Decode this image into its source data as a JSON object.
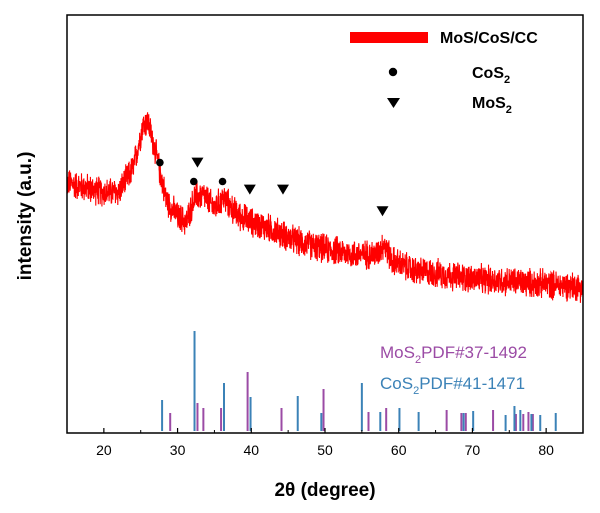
{
  "chart_data": {
    "type": "line",
    "xlabel": "2θ (degree)",
    "ylabel": "intensity (a.u.)",
    "xlim": [
      15,
      85
    ],
    "x_ticks": [
      20,
      30,
      40,
      50,
      60,
      70,
      80
    ],
    "y_ticks_shown": false,
    "grid": false,
    "legend_position": "top-right",
    "colors": {
      "pattern": "#ff0000",
      "mos2_pdf": "#9b4ba5",
      "cos2_pdf": "#3b82b7",
      "markers": "#000000"
    },
    "series": [
      {
        "name": "MoS/CoS/CC",
        "style": "noisy-line",
        "points": [
          [
            15,
            0.545
          ],
          [
            20,
            0.51
          ],
          [
            22,
            0.51
          ],
          [
            24,
            0.6
          ],
          [
            25.3,
            0.76
          ],
          [
            26,
            0.77
          ],
          [
            27,
            0.66
          ],
          [
            28.5,
            0.48
          ],
          [
            30,
            0.42
          ],
          [
            31.2,
            0.4
          ],
          [
            32.3,
            0.49
          ],
          [
            33.5,
            0.5
          ],
          [
            35,
            0.45
          ],
          [
            36.2,
            0.49
          ],
          [
            38,
            0.43
          ],
          [
            40,
            0.4
          ],
          [
            43,
            0.37
          ],
          [
            46,
            0.33
          ],
          [
            50,
            0.3
          ],
          [
            54,
            0.28
          ],
          [
            57,
            0.28
          ],
          [
            58,
            0.32
          ],
          [
            59,
            0.26
          ],
          [
            62,
            0.22
          ],
          [
            65,
            0.21
          ],
          [
            70,
            0.19
          ],
          [
            75,
            0.18
          ],
          [
            80,
            0.17
          ],
          [
            85,
            0.16
          ]
        ],
        "noise_amplitude": 0.045
      }
    ],
    "markers": [
      {
        "name": "CoS2",
        "symbol": "circle",
        "x": [
          27.6,
          32.2,
          36.1
        ],
        "y": [
          0.62,
          0.55,
          0.55
        ]
      },
      {
        "name": "MoS2",
        "symbol": "triangle-down",
        "x": [
          32.7,
          39.8,
          44.3,
          57.8
        ],
        "y": [
          0.62,
          0.52,
          0.52,
          0.44
        ]
      }
    ],
    "reference_patterns": [
      {
        "name": "MoS2 PDF#37-1492",
        "label_main": "MoS",
        "label_sub": "2",
        "label_rest": "PDF#37-1492",
        "lines": [
          {
            "x": 29.0,
            "i": 0.18
          },
          {
            "x": 32.7,
            "i": 0.28
          },
          {
            "x": 33.5,
            "i": 0.23
          },
          {
            "x": 35.9,
            "i": 0.23
          },
          {
            "x": 39.5,
            "i": 0.59
          },
          {
            "x": 44.1,
            "i": 0.23
          },
          {
            "x": 49.8,
            "i": 0.42
          },
          {
            "x": 55.9,
            "i": 0.19
          },
          {
            "x": 58.3,
            "i": 0.23
          },
          {
            "x": 66.5,
            "i": 0.21
          },
          {
            "x": 68.5,
            "i": 0.18
          },
          {
            "x": 69.1,
            "i": 0.18
          },
          {
            "x": 72.8,
            "i": 0.21
          },
          {
            "x": 75.9,
            "i": 0.17
          },
          {
            "x": 76.9,
            "i": 0.17
          },
          {
            "x": 77.6,
            "i": 0.19
          },
          {
            "x": 78.2,
            "i": 0.17
          }
        ]
      },
      {
        "name": "CoS2 PDF#41-1471",
        "label_main": "CoS",
        "label_sub": "2",
        "label_rest": "PDF#41-1471",
        "lines": [
          {
            "x": 27.9,
            "i": 0.31
          },
          {
            "x": 32.3,
            "i": 1.0
          },
          {
            "x": 36.3,
            "i": 0.48
          },
          {
            "x": 39.9,
            "i": 0.34
          },
          {
            "x": 46.3,
            "i": 0.35
          },
          {
            "x": 49.5,
            "i": 0.18
          },
          {
            "x": 55.0,
            "i": 0.48
          },
          {
            "x": 57.5,
            "i": 0.19
          },
          {
            "x": 60.1,
            "i": 0.23
          },
          {
            "x": 62.7,
            "i": 0.19
          },
          {
            "x": 68.8,
            "i": 0.18
          },
          {
            "x": 70.1,
            "i": 0.2
          },
          {
            "x": 74.5,
            "i": 0.16
          },
          {
            "x": 75.7,
            "i": 0.25
          },
          {
            "x": 76.5,
            "i": 0.21
          },
          {
            "x": 78.0,
            "i": 0.17
          },
          {
            "x": 79.2,
            "i": 0.16
          },
          {
            "x": 81.3,
            "i": 0.18
          }
        ]
      }
    ],
    "legend": [
      {
        "label": "MoS/CoS/CC",
        "label_main": "MoS/CoS/CC",
        "label_sub": "",
        "symbol": "line"
      },
      {
        "label": "CoS2",
        "label_main": "CoS",
        "label_sub": "2",
        "symbol": "circle"
      },
      {
        "label": "MoS2",
        "label_main": "MoS",
        "label_sub": "2",
        "symbol": "triangle-down"
      }
    ]
  }
}
